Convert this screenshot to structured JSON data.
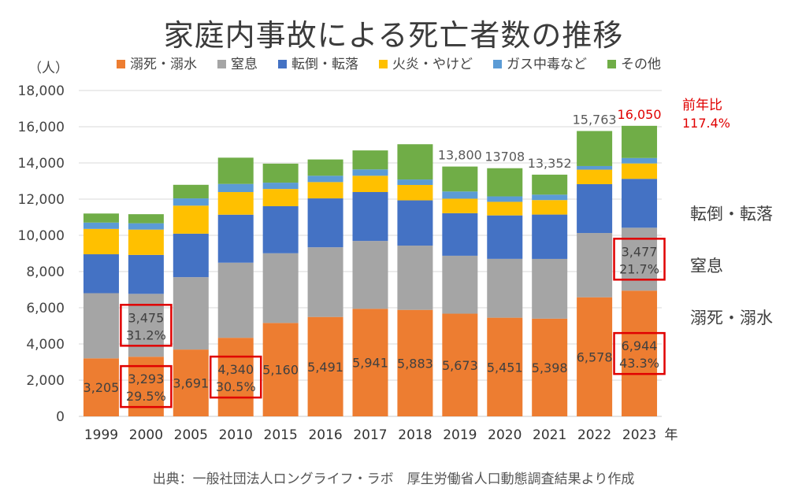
{
  "title": "家庭内事故による死亡者数の推移",
  "source": "出典：一般社団法人ロングライフ・ラボ　厚生労働省人口動態調査結果より作成",
  "chart_data": {
    "type": "bar",
    "stacked": true,
    "title": "家庭内事故による死亡者数の推移",
    "ylabel": "（人）",
    "xlabel": "年",
    "ylim": [
      0,
      18000
    ],
    "yticks": [
      "0",
      "2,000",
      "4,000",
      "6,000",
      "8,000",
      "10,000",
      "12,000",
      "14,000",
      "16,000",
      "18,000"
    ],
    "grid": true,
    "legend": "top",
    "categories": [
      "1999",
      "2000",
      "2005",
      "2010",
      "2015",
      "2016",
      "2017",
      "2018",
      "2019",
      "2020",
      "2021",
      "2022",
      "2023"
    ],
    "series": [
      {
        "name": "溺死・溺水",
        "color": "#ED7D31",
        "values": [
          3205,
          3293,
          3691,
          4340,
          5160,
          5491,
          5941,
          5883,
          5673,
          5451,
          5398,
          6578,
          6944
        ]
      },
      {
        "name": "窒息",
        "color": "#A5A5A5",
        "values": [
          3600,
          3475,
          4000,
          4150,
          3850,
          3850,
          3750,
          3550,
          3200,
          3250,
          3300,
          3550,
          3477
        ]
      },
      {
        "name": "転倒・転落",
        "color": "#4472C4",
        "values": [
          2150,
          2150,
          2400,
          2650,
          2600,
          2700,
          2700,
          2500,
          2350,
          2400,
          2450,
          2700,
          2700
        ]
      },
      {
        "name": "火炎・やけど",
        "color": "#FFC000",
        "values": [
          1400,
          1400,
          1550,
          1250,
          950,
          900,
          900,
          850,
          800,
          750,
          800,
          800,
          850
        ]
      },
      {
        "name": "ガス中毒など",
        "color": "#5B9BD5",
        "values": [
          350,
          350,
          400,
          450,
          350,
          350,
          350,
          300,
          400,
          300,
          300,
          200,
          300
        ]
      },
      {
        "name": "その他",
        "color": "#70AD47",
        "values": [
          500,
          500,
          750,
          1450,
          1050,
          900,
          1050,
          1950,
          1377,
          1557,
          1104,
          1935,
          1779
        ]
      }
    ],
    "data_labels": [
      {
        "series": "溺死・溺水",
        "category": "1999",
        "text": "3,205"
      },
      {
        "series": "溺死・溺水",
        "category": "2000",
        "text": "3,293"
      },
      {
        "series": "溺死・溺水",
        "category": "2005",
        "text": "3,691"
      },
      {
        "series": "溺死・溺水",
        "category": "2010",
        "text": "4,340"
      },
      {
        "series": "溺死・溺水",
        "category": "2015",
        "text": "5,160"
      },
      {
        "series": "溺死・溺水",
        "category": "2016",
        "text": "5,491"
      },
      {
        "series": "溺死・溺水",
        "category": "2017",
        "text": "5,941"
      },
      {
        "series": "溺死・溺水",
        "category": "2018",
        "text": "5,883"
      },
      {
        "series": "溺死・溺水",
        "category": "2019",
        "text": "5,673"
      },
      {
        "series": "溺死・溺水",
        "category": "2020",
        "text": "5,451"
      },
      {
        "series": "溺死・溺水",
        "category": "2021",
        "text": "5,398"
      },
      {
        "series": "溺死・溺水",
        "category": "2022",
        "text": "6,578"
      },
      {
        "series": "溺死・溺水",
        "category": "2023",
        "text": "6,944"
      }
    ],
    "totals": [
      {
        "category": "2019",
        "text": "13,800"
      },
      {
        "category": "2020",
        "text": "13708"
      },
      {
        "category": "2021",
        "text": "13,352"
      },
      {
        "category": "2022",
        "text": "15,763"
      },
      {
        "category": "2023",
        "text": "16,050",
        "color": "#E00000"
      }
    ],
    "callouts": [
      {
        "category": "2000",
        "series": "窒息",
        "lines": [
          "3,475",
          "31.2%"
        ]
      },
      {
        "category": "2000",
        "series": "溺死・溺水",
        "lines": [
          "3,293",
          "29.5%"
        ]
      },
      {
        "category": "2010",
        "series": "溺死・溺水",
        "lines": [
          "4,340",
          "30.5%"
        ]
      },
      {
        "category": "2023",
        "series": "窒息",
        "lines": [
          "3,477",
          "21.7%"
        ]
      },
      {
        "category": "2023",
        "series": "溺死・溺水",
        "lines": [
          "6,944",
          "43.3%"
        ]
      }
    ],
    "annotations": {
      "yoy_label": "前年比",
      "yoy_value": "117.4%",
      "right_labels": [
        "転倒・転落",
        "窒息",
        "溺死・溺水"
      ]
    }
  }
}
